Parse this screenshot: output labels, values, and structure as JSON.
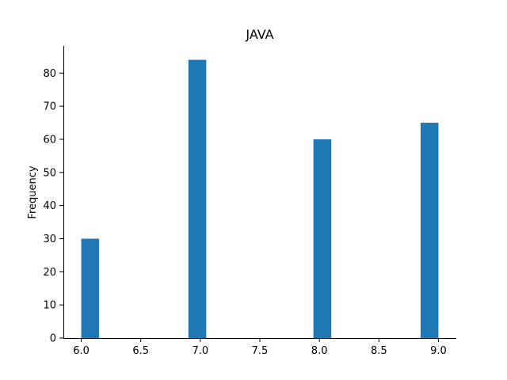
{
  "chart_data": {
    "type": "bar",
    "title": "JAVA",
    "xlabel": "",
    "ylabel": "Frequency",
    "bars": [
      {
        "x_start": 6.0,
        "x_end": 6.15,
        "value": 30
      },
      {
        "x_start": 6.9,
        "x_end": 7.05,
        "value": 84
      },
      {
        "x_start": 7.95,
        "x_end": 8.1,
        "value": 60
      },
      {
        "x_start": 8.85,
        "x_end": 9.0,
        "value": 65
      }
    ],
    "xlim": [
      5.85,
      9.15
    ],
    "ylim": [
      0,
      88.2
    ],
    "xticks": [
      6.0,
      6.5,
      7.0,
      7.5,
      8.0,
      8.5,
      9.0
    ],
    "xtick_labels": [
      "6.0",
      "6.5",
      "7.0",
      "7.5",
      "8.0",
      "8.5",
      "9.0"
    ],
    "yticks": [
      0,
      10,
      20,
      30,
      40,
      50,
      60,
      70,
      80
    ],
    "ytick_labels": [
      "0",
      "10",
      "20",
      "30",
      "40",
      "50",
      "60",
      "70",
      "80"
    ],
    "grid": false,
    "bar_color": "#1f77b4"
  }
}
